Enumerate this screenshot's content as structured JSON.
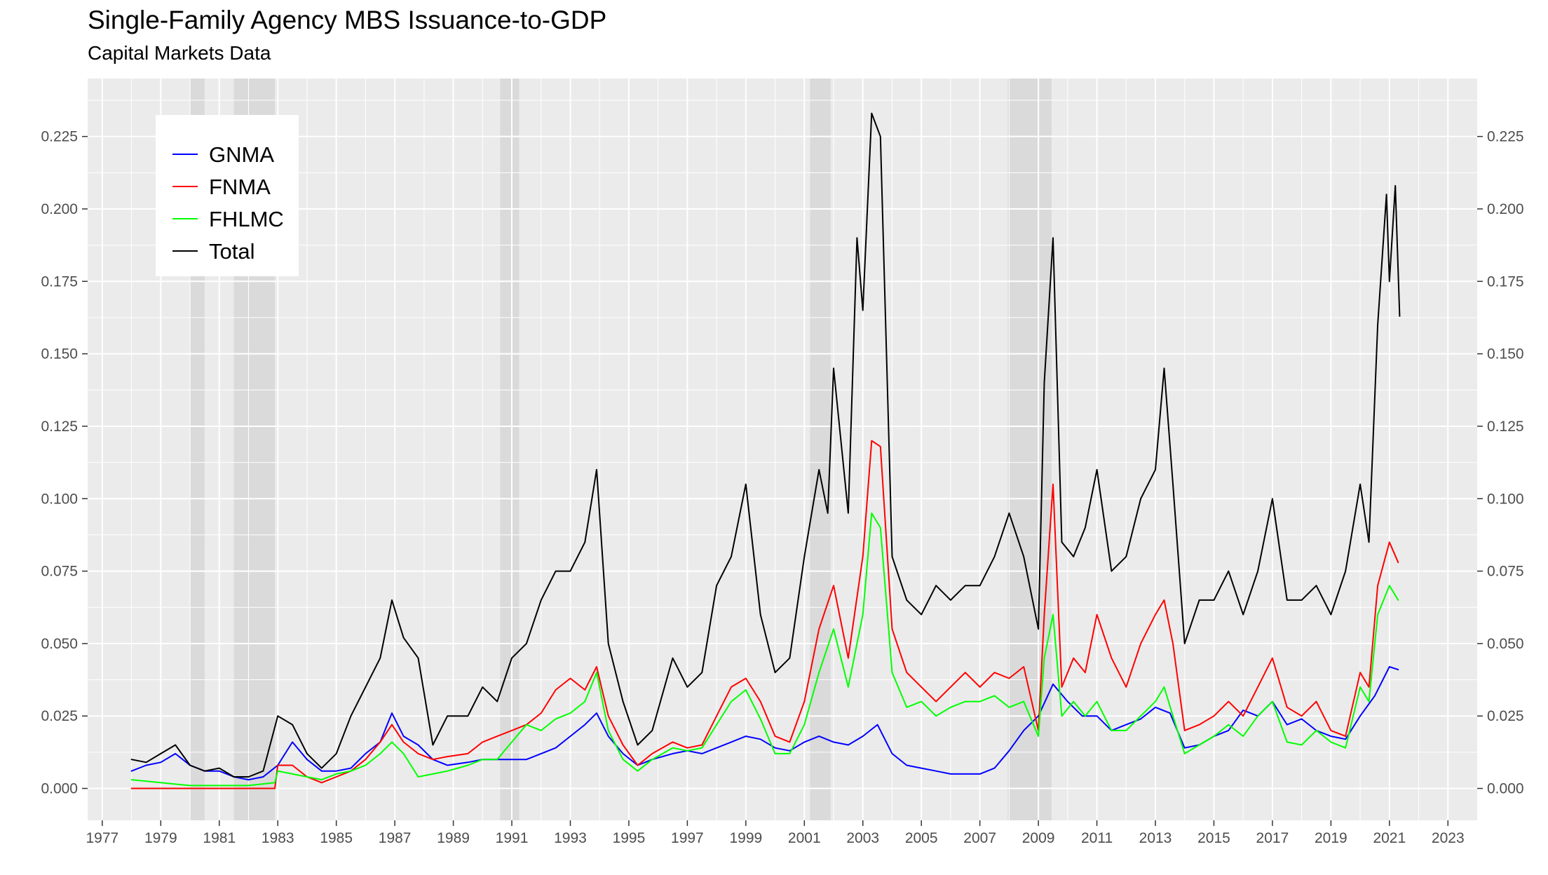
{
  "title": "Single-Family Agency MBS Issuance-to-GDP",
  "subtitle": "Capital Markets Data",
  "chart_data": {
    "type": "line",
    "title": "Single-Family Agency MBS Issuance-to-GDP",
    "subtitle": "Capital Markets Data",
    "xlabel": "",
    "ylabel": "",
    "xlim": [
      1976.5,
      2024.0
    ],
    "ylim": [
      -0.011,
      0.245
    ],
    "grid": true,
    "secondary_y_axis": true,
    "legend_position": "top-left",
    "x_ticks": [
      "1977",
      "1979",
      "1981",
      "1983",
      "1985",
      "1987",
      "1989",
      "1991",
      "1993",
      "1995",
      "1997",
      "1999",
      "2001",
      "2003",
      "2005",
      "2007",
      "2009",
      "2011",
      "2013",
      "2015",
      "2017",
      "2019",
      "2021",
      "2023"
    ],
    "y_ticks": [
      "0.000",
      "0.025",
      "0.050",
      "0.075",
      "0.100",
      "0.125",
      "0.150",
      "0.175",
      "0.200",
      "0.225"
    ],
    "recessions": [
      [
        1980.0,
        1980.5
      ],
      [
        1981.5,
        1982.9
      ],
      [
        1990.6,
        1991.25
      ],
      [
        2001.2,
        2001.9
      ],
      [
        2007.95,
        2009.45
      ]
    ],
    "series": [
      {
        "name": "GNMA",
        "color": "#0000ff",
        "x": [
          1978.0,
          1978.5,
          1979.0,
          1979.5,
          1980.0,
          1980.5,
          1981.0,
          1981.5,
          1982.0,
          1982.5,
          1983.0,
          1983.5,
          1984.0,
          1984.5,
          1985.0,
          1985.5,
          1986.0,
          1986.5,
          1986.9,
          1987.3,
          1987.8,
          1988.3,
          1988.8,
          1989.5,
          1990.0,
          1990.5,
          1991.0,
          1991.5,
          1992.0,
          1992.5,
          1993.0,
          1993.5,
          1993.9,
          1994.3,
          1994.8,
          1995.3,
          1995.8,
          1996.5,
          1997.0,
          1997.5,
          1998.0,
          1998.5,
          1999.0,
          1999.5,
          2000.0,
          2000.5,
          2001.0,
          2001.5,
          2002.0,
          2002.5,
          2003.0,
          2003.5,
          2004.0,
          2004.5,
          2005.0,
          2005.5,
          2006.0,
          2006.5,
          2007.0,
          2007.5,
          2008.0,
          2008.5,
          2009.0,
          2009.5,
          2010.0,
          2010.5,
          2011.0,
          2011.5,
          2012.0,
          2012.5,
          2013.0,
          2013.5,
          2014.0,
          2014.5,
          2015.0,
          2015.5,
          2016.0,
          2016.5,
          2017.0,
          2017.5,
          2018.0,
          2018.5,
          2019.0,
          2019.5,
          2020.0,
          2020.5,
          2021.0,
          2021.3
        ],
        "y": [
          0.006,
          0.008,
          0.009,
          0.012,
          0.008,
          0.006,
          0.006,
          0.004,
          0.003,
          0.004,
          0.008,
          0.016,
          0.01,
          0.006,
          0.006,
          0.007,
          0.012,
          0.016,
          0.026,
          0.018,
          0.015,
          0.01,
          0.008,
          0.009,
          0.01,
          0.01,
          0.01,
          0.01,
          0.012,
          0.014,
          0.018,
          0.022,
          0.026,
          0.018,
          0.012,
          0.008,
          0.01,
          0.012,
          0.013,
          0.012,
          0.014,
          0.016,
          0.018,
          0.017,
          0.014,
          0.013,
          0.016,
          0.018,
          0.016,
          0.015,
          0.018,
          0.022,
          0.012,
          0.008,
          0.007,
          0.006,
          0.005,
          0.005,
          0.005,
          0.007,
          0.013,
          0.02,
          0.025,
          0.036,
          0.03,
          0.025,
          0.025,
          0.02,
          0.022,
          0.024,
          0.028,
          0.026,
          0.014,
          0.015,
          0.018,
          0.02,
          0.027,
          0.025,
          0.03,
          0.022,
          0.024,
          0.02,
          0.018,
          0.017,
          0.025,
          0.032,
          0.042,
          0.041
        ]
      },
      {
        "name": "FNMA",
        "color": "#ff0000",
        "x": [
          1978.0,
          1979.0,
          1980.0,
          1981.0,
          1982.0,
          1982.9,
          1983.0,
          1983.5,
          1984.0,
          1984.5,
          1985.0,
          1985.5,
          1986.0,
          1986.5,
          1986.9,
          1987.3,
          1987.8,
          1988.3,
          1988.8,
          1989.5,
          1990.0,
          1990.5,
          1991.0,
          1991.5,
          1992.0,
          1992.5,
          1993.0,
          1993.5,
          1993.9,
          1994.3,
          1994.8,
          1995.3,
          1995.8,
          1996.5,
          1997.0,
          1997.5,
          1998.0,
          1998.5,
          1999.0,
          1999.5,
          2000.0,
          2000.5,
          2001.0,
          2001.5,
          2002.0,
          2002.5,
          2003.0,
          2003.3,
          2003.6,
          2004.0,
          2004.5,
          2005.0,
          2005.5,
          2006.0,
          2006.5,
          2007.0,
          2007.5,
          2008.0,
          2008.5,
          2009.0,
          2009.2,
          2009.5,
          2009.8,
          2010.2,
          2010.6,
          2011.0,
          2011.5,
          2012.0,
          2012.5,
          2013.0,
          2013.3,
          2013.6,
          2014.0,
          2014.5,
          2015.0,
          2015.5,
          2016.0,
          2016.5,
          2017.0,
          2017.5,
          2018.0,
          2018.5,
          2019.0,
          2019.5,
          2020.0,
          2020.3,
          2020.6,
          2021.0,
          2021.3
        ],
        "y": [
          0.0,
          0.0,
          0.0,
          0.0,
          0.0,
          0.0,
          0.008,
          0.008,
          0.004,
          0.002,
          0.004,
          0.006,
          0.01,
          0.016,
          0.022,
          0.016,
          0.012,
          0.01,
          0.011,
          0.012,
          0.016,
          0.018,
          0.02,
          0.022,
          0.026,
          0.034,
          0.038,
          0.034,
          0.042,
          0.025,
          0.015,
          0.008,
          0.012,
          0.016,
          0.014,
          0.015,
          0.025,
          0.035,
          0.038,
          0.03,
          0.018,
          0.016,
          0.03,
          0.055,
          0.07,
          0.045,
          0.08,
          0.12,
          0.118,
          0.055,
          0.04,
          0.035,
          0.03,
          0.035,
          0.04,
          0.035,
          0.04,
          0.038,
          0.042,
          0.02,
          0.06,
          0.105,
          0.035,
          0.045,
          0.04,
          0.06,
          0.045,
          0.035,
          0.05,
          0.06,
          0.065,
          0.05,
          0.02,
          0.022,
          0.025,
          0.03,
          0.025,
          0.035,
          0.045,
          0.028,
          0.025,
          0.03,
          0.02,
          0.018,
          0.04,
          0.035,
          0.07,
          0.085,
          0.078
        ]
      },
      {
        "name": "FHLMC",
        "color": "#00ff00",
        "x": [
          1978.0,
          1979.0,
          1980.0,
          1981.0,
          1982.0,
          1982.9,
          1983.0,
          1983.5,
          1984.0,
          1984.5,
          1985.0,
          1985.5,
          1986.0,
          1986.5,
          1986.9,
          1987.3,
          1987.8,
          1988.3,
          1988.8,
          1989.5,
          1990.0,
          1990.5,
          1991.0,
          1991.5,
          1992.0,
          1992.5,
          1993.0,
          1993.5,
          1993.9,
          1994.3,
          1994.8,
          1995.3,
          1995.8,
          1996.5,
          1997.0,
          1997.5,
          1998.0,
          1998.5,
          1999.0,
          1999.5,
          2000.0,
          2000.5,
          2001.0,
          2001.5,
          2002.0,
          2002.5,
          2003.0,
          2003.3,
          2003.6,
          2004.0,
          2004.5,
          2005.0,
          2005.5,
          2006.0,
          2006.5,
          2007.0,
          2007.5,
          2008.0,
          2008.5,
          2009.0,
          2009.2,
          2009.5,
          2009.8,
          2010.2,
          2010.6,
          2011.0,
          2011.5,
          2012.0,
          2012.5,
          2013.0,
          2013.3,
          2013.6,
          2014.0,
          2014.5,
          2015.0,
          2015.5,
          2016.0,
          2016.5,
          2017.0,
          2017.5,
          2018.0,
          2018.5,
          2019.0,
          2019.5,
          2020.0,
          2020.3,
          2020.6,
          2021.0,
          2021.3
        ],
        "y": [
          0.003,
          0.002,
          0.001,
          0.001,
          0.001,
          0.002,
          0.006,
          0.005,
          0.004,
          0.003,
          0.005,
          0.006,
          0.008,
          0.012,
          0.016,
          0.012,
          0.004,
          0.005,
          0.006,
          0.008,
          0.01,
          0.01,
          0.016,
          0.022,
          0.02,
          0.024,
          0.026,
          0.03,
          0.04,
          0.02,
          0.01,
          0.006,
          0.01,
          0.014,
          0.013,
          0.014,
          0.022,
          0.03,
          0.034,
          0.024,
          0.012,
          0.012,
          0.022,
          0.04,
          0.055,
          0.035,
          0.06,
          0.095,
          0.09,
          0.04,
          0.028,
          0.03,
          0.025,
          0.028,
          0.03,
          0.03,
          0.032,
          0.028,
          0.03,
          0.018,
          0.045,
          0.06,
          0.025,
          0.03,
          0.025,
          0.03,
          0.02,
          0.02,
          0.025,
          0.03,
          0.035,
          0.025,
          0.012,
          0.015,
          0.018,
          0.022,
          0.018,
          0.025,
          0.03,
          0.016,
          0.015,
          0.02,
          0.016,
          0.014,
          0.035,
          0.03,
          0.06,
          0.07,
          0.065
        ]
      },
      {
        "name": "Total",
        "color": "#000000",
        "x": [
          1978.0,
          1978.5,
          1979.0,
          1979.5,
          1980.0,
          1980.5,
          1981.0,
          1981.5,
          1982.0,
          1982.5,
          1983.0,
          1983.5,
          1984.0,
          1984.5,
          1985.0,
          1985.5,
          1986.0,
          1986.5,
          1986.9,
          1987.3,
          1987.8,
          1988.3,
          1988.8,
          1989.5,
          1990.0,
          1990.5,
          1991.0,
          1991.5,
          1992.0,
          1992.5,
          1993.0,
          1993.5,
          1993.9,
          1994.3,
          1994.8,
          1995.3,
          1995.8,
          1996.5,
          1997.0,
          1997.5,
          1998.0,
          1998.5,
          1999.0,
          1999.5,
          2000.0,
          2000.5,
          2001.0,
          2001.5,
          2001.8,
          2002.0,
          2002.5,
          2002.8,
          2003.0,
          2003.3,
          2003.6,
          2004.0,
          2004.5,
          2005.0,
          2005.5,
          2006.0,
          2006.5,
          2007.0,
          2007.5,
          2008.0,
          2008.5,
          2009.0,
          2009.2,
          2009.5,
          2009.8,
          2010.2,
          2010.6,
          2011.0,
          2011.5,
          2012.0,
          2012.5,
          2013.0,
          2013.3,
          2013.6,
          2014.0,
          2014.5,
          2015.0,
          2015.5,
          2016.0,
          2016.5,
          2017.0,
          2017.5,
          2018.0,
          2018.5,
          2019.0,
          2019.5,
          2020.0,
          2020.3,
          2020.6,
          2020.9,
          2021.0,
          2021.2,
          2021.35
        ],
        "y": [
          0.01,
          0.009,
          0.012,
          0.015,
          0.008,
          0.006,
          0.007,
          0.004,
          0.004,
          0.006,
          0.025,
          0.022,
          0.012,
          0.007,
          0.012,
          0.025,
          0.035,
          0.045,
          0.065,
          0.052,
          0.045,
          0.015,
          0.025,
          0.025,
          0.035,
          0.03,
          0.045,
          0.05,
          0.065,
          0.075,
          0.075,
          0.085,
          0.11,
          0.05,
          0.03,
          0.015,
          0.02,
          0.045,
          0.035,
          0.04,
          0.07,
          0.08,
          0.105,
          0.06,
          0.04,
          0.045,
          0.08,
          0.11,
          0.095,
          0.145,
          0.095,
          0.19,
          0.165,
          0.233,
          0.225,
          0.08,
          0.065,
          0.06,
          0.07,
          0.065,
          0.07,
          0.07,
          0.08,
          0.095,
          0.08,
          0.055,
          0.14,
          0.19,
          0.085,
          0.08,
          0.09,
          0.11,
          0.075,
          0.08,
          0.1,
          0.11,
          0.145,
          0.105,
          0.05,
          0.065,
          0.065,
          0.075,
          0.06,
          0.075,
          0.1,
          0.065,
          0.065,
          0.07,
          0.06,
          0.075,
          0.105,
          0.085,
          0.16,
          0.205,
          0.175,
          0.208,
          0.163
        ]
      }
    ]
  }
}
